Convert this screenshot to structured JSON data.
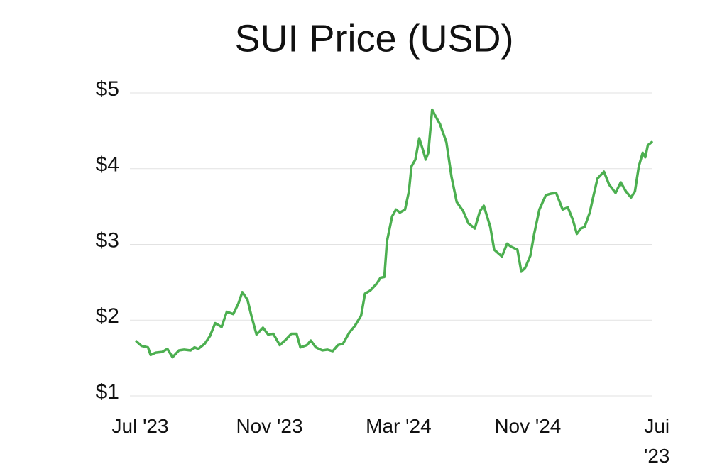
{
  "chart_data": {
    "type": "line",
    "title": "SUI Price (USD)",
    "x": [
      -0.03,
      0.01,
      0.06,
      0.08,
      0.12,
      0.17,
      0.21,
      0.25,
      0.3,
      0.34,
      0.39,
      0.42,
      0.45,
      0.5,
      0.54,
      0.58,
      0.63,
      0.67,
      0.72,
      0.76,
      0.79,
      0.83,
      0.86,
      0.9,
      0.95,
      0.99,
      1.03,
      1.08,
      1.12,
      1.17,
      1.21,
      1.24,
      1.29,
      1.32,
      1.36,
      1.41,
      1.45,
      1.49,
      1.53,
      1.57,
      1.62,
      1.66,
      1.71,
      1.74,
      1.78,
      1.83,
      1.86,
      1.89,
      1.91,
      1.95,
      1.98,
      2.01,
      2.05,
      2.08,
      2.1,
      2.13,
      2.16,
      2.19,
      2.21,
      2.23,
      2.26,
      2.29,
      2.32,
      2.37,
      2.41,
      2.45,
      2.5,
      2.54,
      2.59,
      2.63,
      2.66,
      2.71,
      2.74,
      2.8,
      2.84,
      2.87,
      2.92,
      2.95,
      2.98,
      3.02,
      3.05,
      3.09,
      3.14,
      3.18,
      3.22,
      3.27,
      3.31,
      3.35,
      3.38,
      3.41,
      3.44,
      3.48,
      3.51,
      3.54,
      3.59,
      3.63,
      3.68,
      3.72,
      3.76,
      3.8,
      3.83,
      3.86,
      3.89,
      3.91,
      3.93,
      3.96
    ],
    "series": [
      {
        "color": "#4caf50",
        "values": [
          1.72,
          1.66,
          1.64,
          1.54,
          1.57,
          1.58,
          1.62,
          1.51,
          1.6,
          1.61,
          1.6,
          1.64,
          1.62,
          1.69,
          1.79,
          1.96,
          1.91,
          2.11,
          2.08,
          2.22,
          2.37,
          2.27,
          2.06,
          1.81,
          1.9,
          1.81,
          1.82,
          1.67,
          1.73,
          1.82,
          1.82,
          1.64,
          1.67,
          1.73,
          1.64,
          1.6,
          1.61,
          1.59,
          1.67,
          1.69,
          1.84,
          1.92,
          2.06,
          2.35,
          2.39,
          2.48,
          2.56,
          2.57,
          3.04,
          3.37,
          3.46,
          3.42,
          3.46,
          3.7,
          4.03,
          4.12,
          4.4,
          4.24,
          4.12,
          4.21,
          4.78,
          4.68,
          4.59,
          4.35,
          3.89,
          3.56,
          3.44,
          3.28,
          3.21,
          3.44,
          3.51,
          3.23,
          2.93,
          2.84,
          3.01,
          2.97,
          2.93,
          2.64,
          2.69,
          2.85,
          3.14,
          3.46,
          3.65,
          3.67,
          3.68,
          3.46,
          3.49,
          3.32,
          3.14,
          3.21,
          3.23,
          3.42,
          3.65,
          3.87,
          3.96,
          3.79,
          3.68,
          3.82,
          3.7,
          3.62,
          3.7,
          4.03,
          4.21,
          4.15,
          4.31,
          4.35
        ]
      }
    ],
    "xlim": [
      -0.08,
      3.96
    ],
    "xticks": [
      {
        "value": 0,
        "label": "Jul '23"
      },
      {
        "value": 1,
        "label": "Nov '23"
      },
      {
        "value": 2,
        "label": "Mar '24"
      },
      {
        "value": 3,
        "label": "Nov '24"
      },
      {
        "value": 4,
        "label": "Jui '23"
      }
    ],
    "ylim": [
      1,
      5
    ],
    "yticks": [
      {
        "value": 1,
        "label": "$1"
      },
      {
        "value": 2,
        "label": "$2"
      },
      {
        "value": 3,
        "label": "$3"
      },
      {
        "value": 4,
        "label": "$4"
      },
      {
        "value": 5,
        "label": "$5"
      }
    ],
    "grid": true
  }
}
